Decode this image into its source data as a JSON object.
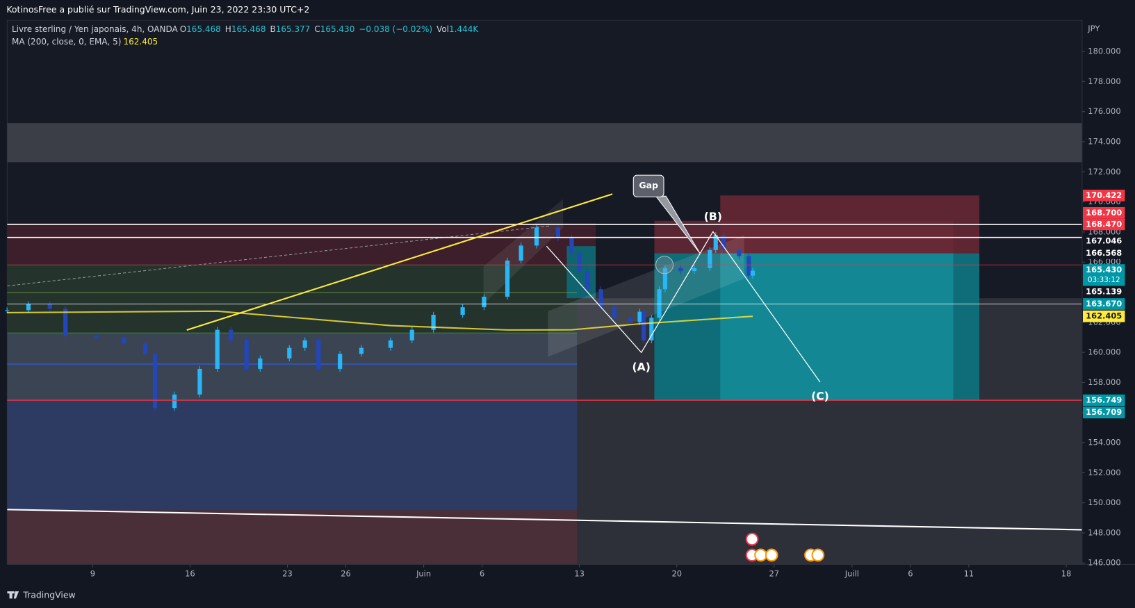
{
  "header_text": "KotinosFree a publié sur TradingView.com, Juin 23, 2022 23:30 UTC+2",
  "chart_data": {
    "type": "candlestick",
    "currency": "JPY",
    "ohlc": [
      {
        "label": "O",
        "value": 165.468
      },
      {
        "label": "H",
        "value": 165.468
      },
      {
        "label": "B",
        "value": 165.377
      },
      {
        "label": "C",
        "value": 165.43,
        "text": "165.430"
      }
    ],
    "change": "−0.038 (−0.02%)",
    "volume": {
      "label": "Vol",
      "value": "1.444K"
    },
    "xlim": [
      -4.39,
      50.82
    ],
    "xticks": [
      {
        "value": 0,
        "label": "9"
      },
      {
        "value": 5,
        "label": "16"
      },
      {
        "value": 10,
        "label": "23"
      },
      {
        "value": 13,
        "label": "26"
      },
      {
        "value": 17,
        "label": "Juin"
      },
      {
        "value": 20,
        "label": "6"
      },
      {
        "value": 25,
        "label": "13"
      },
      {
        "value": 30,
        "label": "20"
      },
      {
        "value": 35,
        "label": "27"
      },
      {
        "value": 39,
        "label": "Juill"
      },
      {
        "value": 42,
        "label": "6"
      },
      {
        "value": 45,
        "label": "11"
      },
      {
        "value": 50,
        "label": "18"
      }
    ],
    "ylim": [
      145.9,
      182.07
    ],
    "yticks": [
      {
        "value": 146,
        "label": "146.000"
      },
      {
        "value": 148,
        "label": "148.000"
      },
      {
        "value": 150,
        "label": "150.000"
      },
      {
        "value": 152,
        "label": "152.000"
      },
      {
        "value": 154,
        "label": "154.000"
      },
      {
        "value": 156,
        "label": "156.000"
      },
      {
        "value": 158,
        "label": "158.000"
      },
      {
        "value": 160,
        "label": "160.000"
      },
      {
        "value": 162,
        "label": "162.000"
      },
      {
        "value": 164,
        "label": "164.000"
      },
      {
        "value": 166,
        "label": "166.000"
      },
      {
        "value": 168,
        "label": "168.000"
      },
      {
        "value": 170,
        "label": "170.000"
      },
      {
        "value": 172,
        "label": "172.000"
      },
      {
        "value": 174,
        "label": "174.000"
      },
      {
        "value": 176,
        "label": "176.000"
      },
      {
        "value": 178,
        "label": "178.000"
      },
      {
        "value": 180,
        "label": "180.000"
      }
    ],
    "up_color": "#29b6f6",
    "down_color": "#2346b8",
    "series": [
      {
        "name": "Livre sterling / Yen japonais, 4h, OANDA",
        "x": [
          -4.4,
          -3.3,
          -2.2,
          -1.4,
          0.2,
          1.6,
          2.7,
          3.2,
          4.2,
          5.5,
          6.4,
          7.1,
          7.9,
          8.6,
          10.1,
          10.9,
          11.6,
          12.7,
          13.8,
          15.3,
          16.4,
          17.5,
          19.0,
          20.1,
          21.3,
          22.0,
          22.8,
          23.9,
          24.6,
          25.0,
          25.4,
          26.1,
          26.8,
          27.6,
          28.1,
          28.3,
          28.7,
          29.1,
          29.4,
          30.2,
          30.9,
          31.7,
          32.0,
          32.4,
          33.2,
          33.7,
          33.9
        ],
        "values": [
          162.8,
          163.2,
          162.9,
          161.1,
          161.0,
          160.6,
          159.9,
          156.3,
          157.2,
          158.9,
          161.5,
          160.8,
          158.9,
          159.6,
          160.3,
          160.8,
          158.9,
          159.9,
          160.3,
          160.8,
          161.5,
          162.5,
          163.0,
          163.7,
          166.1,
          167.1,
          168.3,
          167.6,
          166.6,
          165.4,
          164.2,
          163.0,
          162.3,
          162.0,
          162.7,
          160.8,
          162.3,
          164.2,
          165.6,
          165.4,
          165.6,
          166.8,
          167.8,
          166.8,
          166.4,
          165.1,
          165.43
        ]
      },
      {
        "name": "MA (200, close, 0, EMA, 5)",
        "color": "#ffeb3b",
        "last_value": 162.405,
        "x": [
          -4.4,
          6.4,
          15.3,
          21.3,
          24.6,
          28.1,
          33.9
        ],
        "values": [
          162.64,
          162.74,
          161.78,
          161.49,
          161.5,
          161.9,
          162.4
        ]
      }
    ],
    "price_labels": [
      {
        "value": 170.422,
        "label": "170.422",
        "color": "#f23645"
      },
      {
        "value": 168.7,
        "label": "168.700",
        "color": "#f23645"
      },
      {
        "value": 168.47,
        "label": "168.470",
        "color": "#f23645"
      },
      {
        "value": 167.046,
        "label": "167.046"
      },
      {
        "value": 166.568,
        "label": "166.568"
      },
      {
        "value": 165.43,
        "label": "165.430",
        "color": "#0097a7"
      },
      {
        "value": 165.139,
        "label": "165.139"
      },
      {
        "value": 163.67,
        "label": "163.670",
        "color": "#0097a7"
      },
      {
        "value": 162.405,
        "label": "162.405",
        "color": "#ffeb3b"
      },
      {
        "value": 156.749,
        "label": "156.749",
        "color": "#0097a7"
      },
      {
        "value": 156.709,
        "label": "156.709",
        "color": "#0097a7"
      }
    ],
    "countdown": "03:33:12",
    "annotations": [
      "Gap",
      "(A)",
      "(B)",
      "(C)"
    ]
  },
  "footer": "TradingView"
}
